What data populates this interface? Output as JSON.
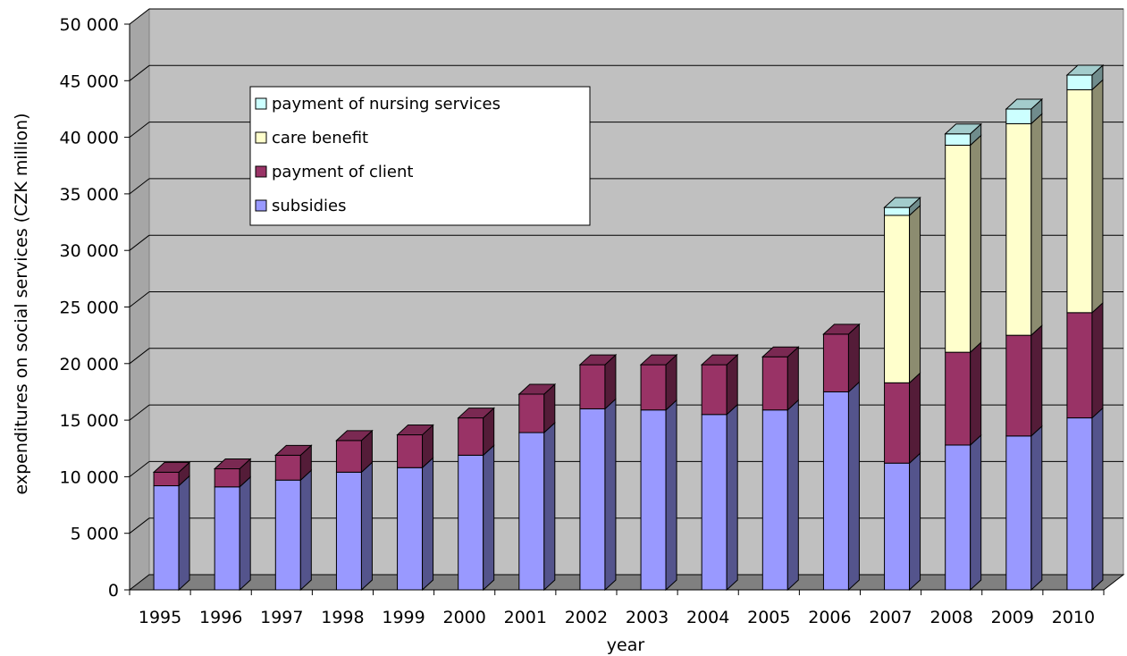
{
  "chart_data": {
    "type": "bar",
    "stacked": true,
    "three_d": true,
    "xlabel": "year",
    "ylabel": "expenditures on social services (CZK million)",
    "ylim": [
      0,
      50000
    ],
    "ytick_step": 5000,
    "ytick_labels": [
      "0",
      "5 000",
      "10 000",
      "15 000",
      "20 000",
      "25 000",
      "30 000",
      "35 000",
      "40 000",
      "45 000",
      "50 000"
    ],
    "categories": [
      "1995",
      "1996",
      "1997",
      "1998",
      "1999",
      "2000",
      "2001",
      "2002",
      "2003",
      "2004",
      "2005",
      "2006",
      "2007",
      "2008",
      "2009",
      "2010"
    ],
    "legend_position": "top-left",
    "series": [
      {
        "name": "subsidies",
        "color": "#9999ff",
        "values": [
          9200,
          9100,
          9700,
          10400,
          10800,
          11900,
          13900,
          16000,
          15900,
          15500,
          15900,
          17500,
          11200,
          12800,
          13600,
          15200
        ]
      },
      {
        "name": "payment of client",
        "color": "#993366",
        "values": [
          1200,
          1600,
          2200,
          2800,
          2900,
          3300,
          3400,
          3900,
          4000,
          4400,
          4700,
          5100,
          7100,
          8200,
          8900,
          9300
        ]
      },
      {
        "name": "care benefit",
        "color": "#ffffcc",
        "values": [
          0,
          0,
          0,
          0,
          0,
          0,
          0,
          0,
          0,
          0,
          0,
          0,
          14800,
          18300,
          18700,
          19700
        ]
      },
      {
        "name": "payment of nursing services",
        "color": "#ccffff",
        "values": [
          0,
          0,
          0,
          0,
          0,
          0,
          0,
          0,
          0,
          0,
          0,
          0,
          700,
          1000,
          1300,
          1300
        ]
      }
    ],
    "colors": {
      "plot_back": "#c0c0c0",
      "plot_side": "#a6a6a6",
      "floor": "#808080"
    }
  }
}
